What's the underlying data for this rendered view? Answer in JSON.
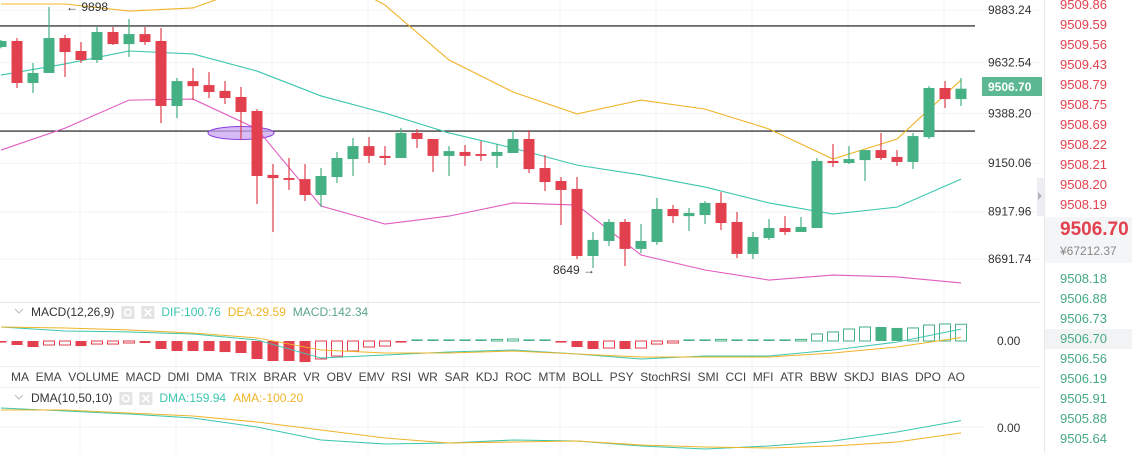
{
  "chart_data": {
    "type": "candlestick",
    "price_axis": {
      "ticks": [
        9883.24,
        9632.54,
        9388.2,
        9150.06,
        8917.96,
        8691.74
      ]
    },
    "current_price_label": "9506.70",
    "annotations": {
      "high_label": "9898",
      "low_label": "8649"
    },
    "horizontal_lines": [
      9807,
      9304
    ],
    "ohlc": [
      [
        9706,
        9740,
        9700,
        9735
      ],
      [
        9735,
        9749,
        9510,
        9534
      ],
      [
        9534,
        9630,
        9486,
        9582
      ],
      [
        9582,
        9898,
        9582,
        9749
      ],
      [
        9749,
        9764,
        9563,
        9682
      ],
      [
        9687,
        9730,
        9630,
        9644
      ],
      [
        9644,
        9802,
        9630,
        9778
      ],
      [
        9778,
        9802,
        9716,
        9720
      ],
      [
        9720,
        9840,
        9658,
        9768
      ],
      [
        9768,
        9802,
        9716,
        9730
      ],
      [
        9735,
        9797,
        9342,
        9424
      ],
      [
        9424,
        9558,
        9366,
        9543
      ],
      [
        9543,
        9606,
        9452,
        9519
      ],
      [
        9524,
        9586,
        9462,
        9491
      ],
      [
        9496,
        9543,
        9433,
        9462
      ],
      [
        9467,
        9515,
        9261,
        9395
      ],
      [
        9400,
        9409,
        8955,
        9089
      ],
      [
        9094,
        9146,
        8821,
        9079
      ],
      [
        9079,
        9175,
        9022,
        9070
      ],
      [
        9074,
        9146,
        8969,
        8998
      ],
      [
        8998,
        9127,
        8941,
        9089
      ],
      [
        9084,
        9204,
        9055,
        9175
      ],
      [
        9170,
        9271,
        9089,
        9232
      ],
      [
        9232,
        9275,
        9151,
        9185
      ],
      [
        9185,
        9232,
        9141,
        9175
      ],
      [
        9175,
        9319,
        9175,
        9295
      ],
      [
        9295,
        9314,
        9223,
        9266
      ],
      [
        9266,
        9266,
        9108,
        9185
      ],
      [
        9185,
        9232,
        9089,
        9208
      ],
      [
        9204,
        9237,
        9137,
        9185
      ],
      [
        9194,
        9256,
        9161,
        9185
      ],
      [
        9185,
        9242,
        9127,
        9204
      ],
      [
        9199,
        9309,
        9199,
        9266
      ],
      [
        9266,
        9309,
        9103,
        9122
      ],
      [
        9127,
        9189,
        9017,
        9060
      ],
      [
        9065,
        9084,
        8854,
        9022
      ],
      [
        9027,
        9084,
        8692,
        8706
      ],
      [
        8706,
        8821,
        8649,
        8783
      ],
      [
        8778,
        8883,
        8754,
        8869
      ],
      [
        8869,
        8883,
        8658,
        8740
      ],
      [
        8740,
        8859,
        8720,
        8778
      ],
      [
        8773,
        8984,
        8759,
        8931
      ],
      [
        8931,
        8950,
        8864,
        8897
      ],
      [
        8897,
        8936,
        8826,
        8912
      ],
      [
        8902,
        8969,
        8859,
        8960
      ],
      [
        8960,
        9012,
        8830,
        8864
      ],
      [
        8869,
        8917,
        8696,
        8716
      ],
      [
        8716,
        8821,
        8692,
        8797
      ],
      [
        8792,
        8883,
        8783,
        8840
      ],
      [
        8840,
        8897,
        8807,
        8821
      ],
      [
        8821,
        8893,
        8821,
        8845
      ],
      [
        8840,
        9175,
        8840,
        9161
      ],
      [
        9161,
        9242,
        9132,
        9151
      ],
      [
        9151,
        9232,
        9146,
        9170
      ],
      [
        9165,
        9213,
        9065,
        9213
      ],
      [
        9213,
        9295,
        9165,
        9175
      ],
      [
        9180,
        9213,
        9137,
        9156
      ],
      [
        9156,
        9295,
        9122,
        9280
      ],
      [
        9275,
        9519,
        9266,
        9510
      ],
      [
        9510,
        9543,
        9414,
        9457
      ],
      [
        9457,
        9558,
        9424,
        9506.7
      ]
    ],
    "overlay_sample_every": 4,
    "overlays": [
      {
        "color": "#f0b429",
        "values": [
          9912,
          9912,
          9878,
          9893,
          10003,
          10075,
          9907,
          9644,
          9491,
          9386,
          9452,
          9409,
          9314,
          9170,
          9266,
          9548
        ]
      },
      {
        "color": "#3cc6b0",
        "values": [
          9572,
          9625,
          9687,
          9673,
          9591,
          9472,
          9390,
          9295,
          9223,
          9141,
          9094,
          9036,
          8960,
          8907,
          8940,
          9074
        ]
      },
      {
        "color": "#e05bc0",
        "values": [
          9213,
          9318,
          9452,
          9457,
          9314,
          8945,
          8859,
          8897,
          8960,
          8950,
          8711,
          8639,
          8591,
          8615,
          8606,
          8577
        ]
      }
    ],
    "macd": {
      "title": "MACD(12,26,9)",
      "dif_label": "DIF:100.76",
      "dea_label": "DEA:29.59",
      "macd_label": "MACD:142.34",
      "zero_label": "0.00",
      "histogram": [
        -8,
        -34,
        -51,
        -34,
        -34,
        -43,
        -26,
        -26,
        -17,
        -17,
        -68,
        -85,
        -85,
        -85,
        -94,
        -102,
        -153,
        -170,
        -170,
        -179,
        -153,
        -128,
        -85,
        -51,
        -43,
        -9,
        4,
        4,
        4,
        4,
        4,
        9,
        17,
        9,
        4,
        -9,
        -51,
        -68,
        -60,
        -68,
        -60,
        -26,
        -17,
        4,
        4,
        9,
        3,
        4,
        4,
        4,
        9,
        60,
        77,
        102,
        119,
        119,
        111,
        111,
        136,
        145,
        142.34
      ],
      "filled": [
        1,
        1,
        1,
        0,
        0,
        1,
        0,
        0,
        0,
        1,
        1,
        1,
        1,
        1,
        1,
        1,
        1,
        1,
        1,
        1,
        0,
        0,
        0,
        0,
        0,
        1,
        1,
        1,
        1,
        1,
        1,
        0,
        0,
        1,
        1,
        1,
        1,
        1,
        0,
        1,
        0,
        0,
        0,
        1,
        1,
        0,
        1,
        1,
        1,
        1,
        0,
        0,
        0,
        0,
        0,
        1,
        1,
        0,
        0,
        0,
        0
      ],
      "dif": [
        119,
        85,
        77,
        60,
        9,
        -145,
        -119,
        -94,
        -77,
        -111,
        -153,
        -128,
        -128,
        -77,
        -9,
        100.76
      ],
      "dea": [
        119,
        111,
        94,
        68,
        26,
        -77,
        -102,
        -102,
        -85,
        -111,
        -136,
        -136,
        -136,
        -102,
        -51,
        29.59
      ]
    },
    "dma": {
      "title": "DMA(10,50,10)",
      "dma_label": "DMA:159.94",
      "ama_label": "AMA:-100.20",
      "zero_label": "0.00",
      "dma": [
        475,
        400,
        325,
        225,
        0,
        -325,
        -425,
        -400,
        -325,
        -350,
        -475,
        -550,
        -475,
        -350,
        -125,
        159.94
      ],
      "ama": [
        289,
        289,
        238,
        187,
        85,
        -51,
        -187,
        -272,
        -255,
        -238,
        -306,
        -340,
        -357,
        -323,
        -255,
        -100.2
      ]
    },
    "colors": {
      "up": "#45b084",
      "down": "#e2404f",
      "dif": "#3cc6b0",
      "dea": "#f0b429"
    }
  },
  "indicator_tabs": [
    "MA",
    "EMA",
    "VOLUME",
    "MACD",
    "DMI",
    "DMA",
    "TRIX",
    "BRAR",
    "VR",
    "OBV",
    "EMV",
    "RSI",
    "WR",
    "SAR",
    "KDJ",
    "ROC",
    "MTM",
    "BOLL",
    "PSY",
    "StochRSI",
    "SMI",
    "CCI",
    "MFI",
    "ATR",
    "BBW",
    "SKDJ",
    "BIAS",
    "DPO",
    "AO"
  ],
  "active_tab": "MACD",
  "disabled_tab": "DMA",
  "order_book": {
    "asks": [
      "9509.86",
      "9509.59",
      "9509.56",
      "9509.43",
      "9508.79",
      "9508.75",
      "9508.69",
      "9508.22",
      "9508.21",
      "9508.20",
      "9508.19"
    ],
    "last_price": "9506.70",
    "last_price_cny": "¥67212.37",
    "bids": [
      "9508.18",
      "9506.88",
      "9506.73",
      "9506.70",
      "9506.56",
      "9506.19",
      "9505.91",
      "9505.88",
      "9505.64"
    ]
  }
}
